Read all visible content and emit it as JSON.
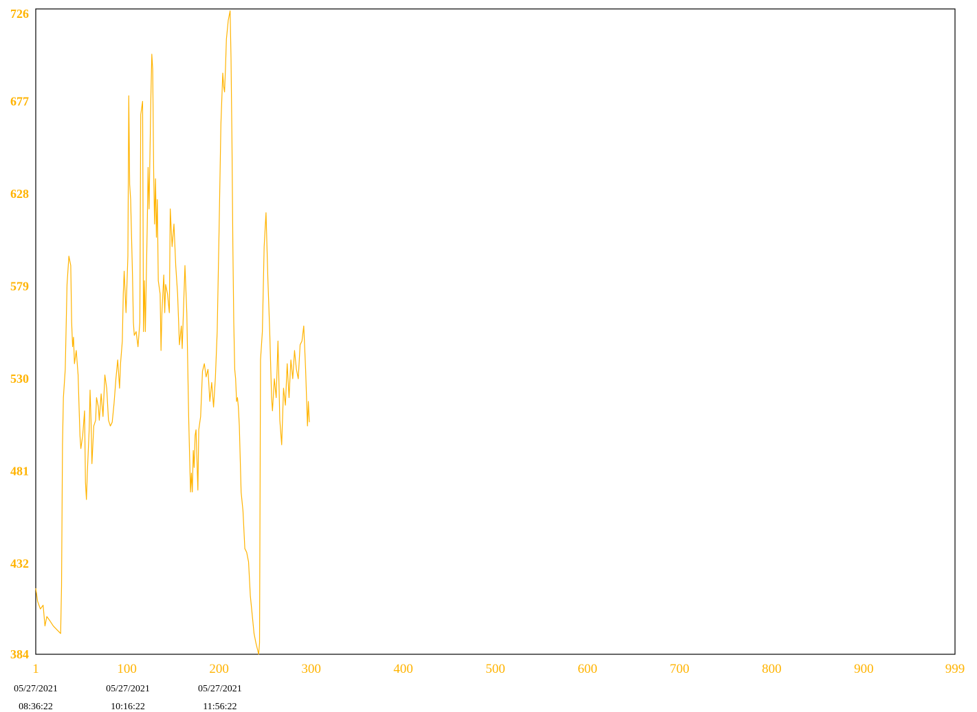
{
  "colors": {
    "series": "#FFB300",
    "frame": "#000000",
    "background": "#ffffff",
    "date_labels": "#000000"
  },
  "chart_data": {
    "type": "line",
    "title": "",
    "xlabel": "",
    "ylabel": "",
    "xlim": [
      1,
      999
    ],
    "ylim": [
      384,
      726
    ],
    "grid": false,
    "legend": "none",
    "y_ticks": [
      "726",
      "677",
      "628",
      "579",
      "530",
      "481",
      "432",
      "384"
    ],
    "x_ticks": [
      "1",
      "100",
      "200",
      "300",
      "400",
      "500",
      "600",
      "700",
      "800",
      "900",
      "999"
    ],
    "date_ticks": [
      {
        "x": 1,
        "date": "05/27/2021",
        "time": "08:36:22"
      },
      {
        "x": 101,
        "date": "05/27/2021",
        "time": "10:16:22"
      },
      {
        "x": 201,
        "date": "05/27/2021",
        "time": "11:56:22"
      }
    ],
    "series": [
      {
        "values": [
          [
            1,
            419
          ],
          [
            3,
            412
          ],
          [
            6,
            408
          ],
          [
            9,
            410
          ],
          [
            11,
            399
          ],
          [
            13,
            404
          ],
          [
            16,
            402
          ],
          [
            20,
            399
          ],
          [
            24,
            397
          ],
          [
            28,
            395
          ],
          [
            29,
            420
          ],
          [
            30,
            495
          ],
          [
            31,
            520
          ],
          [
            33,
            535
          ],
          [
            35,
            580
          ],
          [
            37,
            595
          ],
          [
            39,
            590
          ],
          [
            40,
            560
          ],
          [
            41,
            547
          ],
          [
            42,
            552
          ],
          [
            43,
            538
          ],
          [
            45,
            545
          ],
          [
            47,
            532
          ],
          [
            48,
            515
          ],
          [
            49,
            500
          ],
          [
            50,
            493
          ],
          [
            52,
            500
          ],
          [
            54,
            513
          ],
          [
            55,
            475
          ],
          [
            56,
            466
          ],
          [
            57,
            480
          ],
          [
            59,
            503
          ],
          [
            60,
            524
          ],
          [
            61,
            508
          ],
          [
            62,
            485
          ],
          [
            64,
            505
          ],
          [
            66,
            508
          ],
          [
            67,
            520
          ],
          [
            69,
            515
          ],
          [
            70,
            508
          ],
          [
            72,
            522
          ],
          [
            74,
            510
          ],
          [
            76,
            532
          ],
          [
            78,
            525
          ],
          [
            80,
            508
          ],
          [
            82,
            505
          ],
          [
            84,
            507
          ],
          [
            86,
            517
          ],
          [
            88,
            530
          ],
          [
            90,
            540
          ],
          [
            92,
            525
          ],
          [
            93,
            538
          ],
          [
            95,
            550
          ],
          [
            96,
            575
          ],
          [
            97,
            587
          ],
          [
            99,
            565
          ],
          [
            101,
            595
          ],
          [
            102,
            680
          ],
          [
            103,
            633
          ],
          [
            104,
            625
          ],
          [
            106,
            585
          ],
          [
            107,
            560
          ],
          [
            108,
            553
          ],
          [
            110,
            555
          ],
          [
            112,
            547
          ],
          [
            114,
            560
          ],
          [
            115,
            670
          ],
          [
            117,
            677
          ],
          [
            118,
            555
          ],
          [
            119,
            582
          ],
          [
            120,
            555
          ],
          [
            122,
            610
          ],
          [
            123,
            642
          ],
          [
            124,
            620
          ],
          [
            126,
            680
          ],
          [
            127,
            702
          ],
          [
            128,
            694
          ],
          [
            129,
            640
          ],
          [
            130,
            612
          ],
          [
            131,
            636
          ],
          [
            132,
            605
          ],
          [
            133,
            625
          ],
          [
            134,
            582
          ],
          [
            136,
            575
          ],
          [
            137,
            545
          ],
          [
            138,
            565
          ],
          [
            140,
            585
          ],
          [
            141,
            565
          ],
          [
            142,
            580
          ],
          [
            144,
            575
          ],
          [
            146,
            565
          ],
          [
            147,
            620
          ],
          [
            149,
            600
          ],
          [
            151,
            612
          ],
          [
            153,
            590
          ],
          [
            155,
            575
          ],
          [
            157,
            548
          ],
          [
            159,
            558
          ],
          [
            160,
            546
          ],
          [
            163,
            590
          ],
          [
            165,
            565
          ],
          [
            167,
            510
          ],
          [
            168,
            490
          ],
          [
            169,
            470
          ],
          [
            170,
            480
          ],
          [
            171,
            470
          ],
          [
            172,
            492
          ],
          [
            173,
            483
          ],
          [
            174,
            500
          ],
          [
            175,
            503
          ],
          [
            177,
            471
          ],
          [
            178,
            503
          ],
          [
            180,
            510
          ],
          [
            182,
            534
          ],
          [
            184,
            538
          ],
          [
            186,
            531
          ],
          [
            188,
            535
          ],
          [
            190,
            518
          ],
          [
            192,
            528
          ],
          [
            194,
            515
          ],
          [
            196,
            530
          ],
          [
            198,
            555
          ],
          [
            200,
            608
          ],
          [
            202,
            665
          ],
          [
            204,
            692
          ],
          [
            205,
            685
          ],
          [
            206,
            682
          ],
          [
            207,
            695
          ],
          [
            208,
            710
          ],
          [
            210,
            720
          ],
          [
            212,
            725
          ],
          [
            213,
            700
          ],
          [
            214,
            655
          ],
          [
            215,
            600
          ],
          [
            216,
            560
          ],
          [
            217,
            535
          ],
          [
            218,
            530
          ],
          [
            219,
            518
          ],
          [
            220,
            520
          ],
          [
            221,
            515
          ],
          [
            222,
            505
          ],
          [
            224,
            470
          ],
          [
            226,
            460
          ],
          [
            228,
            440
          ],
          [
            230,
            438
          ],
          [
            232,
            433
          ],
          [
            234,
            415
          ],
          [
            236,
            405
          ],
          [
            238,
            395
          ],
          [
            240,
            390
          ],
          [
            242,
            386
          ],
          [
            243,
            384
          ],
          [
            244,
            390
          ],
          [
            245,
            540
          ],
          [
            247,
            555
          ],
          [
            249,
            600
          ],
          [
            251,
            618
          ],
          [
            253,
            583
          ],
          [
            255,
            555
          ],
          [
            257,
            520
          ],
          [
            258,
            513
          ],
          [
            260,
            530
          ],
          [
            262,
            520
          ],
          [
            264,
            550
          ],
          [
            266,
            508
          ],
          [
            268,
            495
          ],
          [
            270,
            525
          ],
          [
            272,
            516
          ],
          [
            274,
            538
          ],
          [
            276,
            520
          ],
          [
            278,
            540
          ],
          [
            280,
            530
          ],
          [
            282,
            545
          ],
          [
            284,
            535
          ],
          [
            286,
            530
          ],
          [
            288,
            548
          ],
          [
            290,
            550
          ],
          [
            292,
            558
          ],
          [
            294,
            535
          ],
          [
            296,
            505
          ],
          [
            297,
            518
          ],
          [
            298,
            507
          ]
        ]
      }
    ]
  }
}
